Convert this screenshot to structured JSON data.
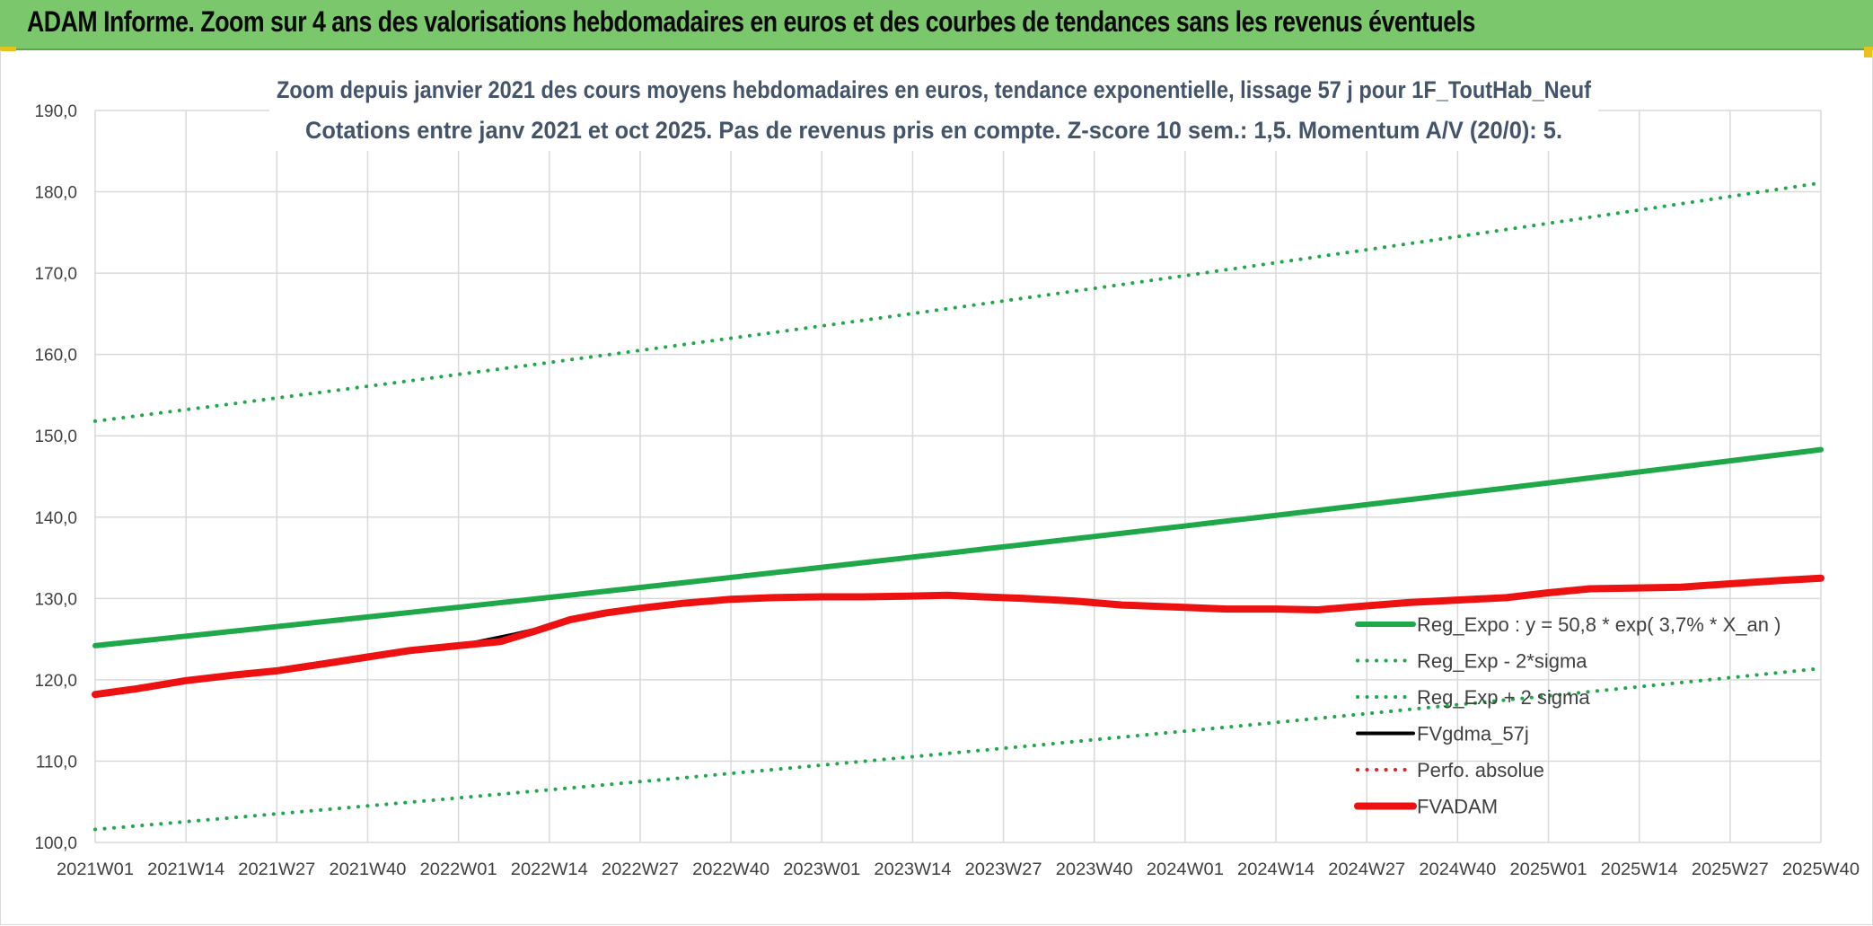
{
  "header": {
    "title": "ADAM Informe. Zoom sur 4 ans des valorisations hebdomadaires en euros et des courbes de tendances sans les revenus éventuels"
  },
  "chart_data": {
    "type": "line",
    "title_line1": "Zoom depuis janvier 2021 des cours moyens hebdomadaires en euros, tendance exponentielle, lissage 57 j pour 1F_ToutHab_Neuf",
    "title_line2": "Cotations entre janv 2021 et oct 2025. Pas de revenus pris en compte. Z-score 10 sem.: 1,5. Momentum A/V (20/0): 5.",
    "xlabel": "",
    "ylabel": "",
    "ylim": [
      100,
      190
    ],
    "yticks": [
      "100,0",
      "110,0",
      "120,0",
      "130,0",
      "140,0",
      "150,0",
      "160,0",
      "170,0",
      "180,0",
      "190,0"
    ],
    "x_range": [
      0,
      247
    ],
    "xticks": [
      {
        "label": "2021W01",
        "x": 0
      },
      {
        "label": "2021W14",
        "x": 13
      },
      {
        "label": "2021W27",
        "x": 26
      },
      {
        "label": "2021W40",
        "x": 39
      },
      {
        "label": "2022W01",
        "x": 52
      },
      {
        "label": "2022W14",
        "x": 65
      },
      {
        "label": "2022W27",
        "x": 78
      },
      {
        "label": "2022W40",
        "x": 91
      },
      {
        "label": "2023W01",
        "x": 104
      },
      {
        "label": "2023W14",
        "x": 117
      },
      {
        "label": "2023W27",
        "x": 130
      },
      {
        "label": "2023W40",
        "x": 143
      },
      {
        "label": "2024W01",
        "x": 156
      },
      {
        "label": "2024W14",
        "x": 169
      },
      {
        "label": "2024W27",
        "x": 182
      },
      {
        "label": "2024W40",
        "x": 195
      },
      {
        "label": "2025W01",
        "x": 208
      },
      {
        "label": "2025W14",
        "x": 221
      },
      {
        "label": "2025W27",
        "x": 234
      },
      {
        "label": "2025W40",
        "x": 247
      }
    ],
    "grid": true,
    "legend_position": "right",
    "series": [
      {
        "name": "Reg_Expo : y = 50,8 * exp( 3,7% *  X_an )",
        "color": "#1fa84a",
        "style": "solid",
        "width": 6,
        "x": [
          0,
          247
        ],
        "y": [
          124.2,
          148.3
        ],
        "curve": "exp"
      },
      {
        "name": "Reg_Exp - 2*sigma",
        "color": "#1fa84a",
        "style": "dotted",
        "width": 4,
        "x": [
          0,
          247
        ],
        "y": [
          101.6,
          121.4
        ],
        "curve": "exp"
      },
      {
        "name": "Reg_Exp + 2 sigma",
        "color": "#1fa84a",
        "style": "dotted",
        "width": 4,
        "x": [
          0,
          247
        ],
        "y": [
          151.8,
          181.1
        ],
        "curve": "exp"
      },
      {
        "name": "FVgdma_57j",
        "color": "#000000",
        "style": "solid",
        "width": 4,
        "x": [
          0,
          13,
          26,
          39,
          52,
          60,
          70,
          80,
          91,
          100,
          110,
          120,
          130,
          143,
          156,
          169,
          180,
          195,
          208,
          214,
          221,
          234,
          247
        ],
        "y": [
          118.2,
          119.9,
          121.3,
          123.0,
          124.2,
          125.6,
          127.6,
          129.1,
          129.9,
          130.2,
          130.3,
          130.4,
          130.1,
          129.4,
          128.9,
          128.6,
          128.9,
          129.7,
          130.6,
          131.2,
          131.3,
          131.8,
          132.5
        ]
      },
      {
        "name": "Perfo. absolue",
        "color": "#e02020",
        "style": "dotted",
        "width": 4,
        "x": [],
        "y": []
      },
      {
        "name": "FVADAM",
        "color": "#ee1111",
        "style": "solid",
        "width": 8,
        "x": [
          0,
          6,
          13,
          20,
          26,
          33,
          39,
          45,
          52,
          58,
          63,
          68,
          73,
          78,
          84,
          91,
          97,
          104,
          110,
          117,
          122,
          127,
          133,
          140,
          147,
          156,
          162,
          169,
          175,
          182,
          188,
          195,
          202,
          208,
          214,
          221,
          227,
          234,
          241,
          247
        ],
        "y": [
          118.2,
          118.9,
          119.9,
          120.6,
          121.1,
          122.0,
          122.8,
          123.6,
          124.2,
          124.7,
          126.0,
          127.4,
          128.2,
          128.8,
          129.4,
          129.9,
          130.1,
          130.2,
          130.2,
          130.3,
          130.4,
          130.2,
          130.0,
          129.7,
          129.2,
          128.9,
          128.7,
          128.7,
          128.6,
          129.1,
          129.5,
          129.8,
          130.1,
          130.7,
          131.2,
          131.3,
          131.4,
          131.8,
          132.2,
          132.5
        ]
      }
    ]
  }
}
